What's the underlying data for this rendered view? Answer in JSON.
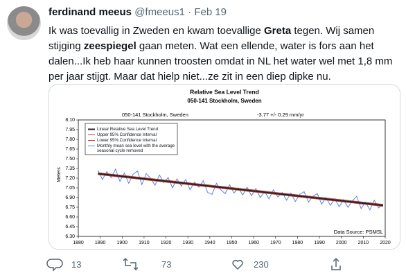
{
  "tweet": {
    "author_name": "ferdinand meeus",
    "handle": "@fmeeus1",
    "separator": "·",
    "date": "Feb 19",
    "lines": [
      [
        {
          "text": "Ik was toevallig in Zweden en kwam toevallige ",
          "bold": false
        },
        {
          "text": "Greta",
          "bold": true
        },
        {
          "text": " tegen. Wij samen",
          "bold": false
        }
      ],
      [
        {
          "text": "stijging ",
          "bold": false
        },
        {
          "text": "zeespiegel",
          "bold": true
        },
        {
          "text": " gaan meten. Wat een ellende, water is fors aan het",
          "bold": false
        }
      ],
      [
        {
          "text": "dalen...Ik heb haar kunnen troosten omdat in NL het water wel met 1,8 mm",
          "bold": false
        }
      ],
      [
        {
          "text": "per jaar stijgt. Maar dat hielp niet...ze zit in een diep dipke nu.",
          "bold": false
        }
      ]
    ],
    "replies": "13",
    "retweets": "73",
    "likes": "230"
  },
  "chart_data": {
    "type": "line",
    "title": "Relative Sea Level Trend",
    "subtitle": "050-141 Stockholm, Sweden",
    "station": "050-141 Stockholm, Sweden",
    "trend_text": "-3.77 +/-  0.29 mm/yr",
    "y_label": "Meters",
    "source": "Data Source: PSMSL",
    "xlim": [
      1880,
      2020
    ],
    "xticks": [
      1880,
      1890,
      1900,
      1910,
      1920,
      1930,
      1940,
      1950,
      1960,
      1970,
      1980,
      1990,
      2000,
      2010,
      2020
    ],
    "ylim": [
      6.3,
      8.1
    ],
    "yticks": [
      {
        "value": 6.3,
        "label": "6.30"
      },
      {
        "value": 6.45,
        "label": "6.45"
      },
      {
        "value": 6.6,
        "label": "6.60"
      },
      {
        "value": 6.75,
        "label": "6.75"
      },
      {
        "value": 6.9,
        "label": "6.90"
      },
      {
        "value": 7.05,
        "label": "7.05"
      },
      {
        "value": 7.2,
        "label": "7.20"
      },
      {
        "value": 7.35,
        "label": "7.35"
      },
      {
        "value": 7.5,
        "label": "7.50"
      },
      {
        "value": 7.65,
        "label": "7.65"
      },
      {
        "value": 7.8,
        "label": "7.80"
      },
      {
        "value": 7.95,
        "label": "7.95"
      },
      {
        "value": 8.1,
        "label": "8.10"
      }
    ],
    "series": [
      {
        "name": "Monthly mean sea level with the average seasonal cycle removed",
        "color": "#5b7fe6",
        "width": 1,
        "x": [
          1889,
          1891,
          1893,
          1895,
          1897,
          1899,
          1901,
          1903,
          1905,
          1907,
          1909,
          1911,
          1913,
          1915,
          1917,
          1919,
          1921,
          1923,
          1925,
          1927,
          1929,
          1931,
          1933,
          1935,
          1937,
          1939,
          1941,
          1943,
          1945,
          1947,
          1949,
          1951,
          1953,
          1955,
          1957,
          1959,
          1961,
          1963,
          1965,
          1967,
          1969,
          1971,
          1973,
          1975,
          1977,
          1979,
          1981,
          1983,
          1985,
          1987,
          1989,
          1991,
          1993,
          1995,
          1997,
          1999,
          2001,
          2003,
          2005,
          2007,
          2009,
          2011,
          2013,
          2015,
          2017,
          2019
        ],
        "values": [
          7.32,
          7.18,
          7.3,
          7.21,
          7.34,
          7.15,
          7.28,
          7.12,
          7.26,
          7.31,
          7.1,
          7.27,
          7.2,
          7.09,
          7.25,
          7.13,
          7.21,
          7.05,
          7.19,
          7.08,
          7.18,
          7.02,
          7.14,
          7.06,
          7.16,
          6.98,
          6.95,
          7.12,
          7.02,
          6.96,
          7.1,
          6.97,
          7.05,
          6.94,
          7.06,
          6.93,
          7.04,
          6.9,
          6.99,
          6.88,
          7.02,
          6.91,
          6.98,
          6.86,
          6.97,
          6.84,
          6.95,
          6.99,
          6.83,
          6.92,
          6.96,
          6.8,
          6.9,
          6.78,
          6.88,
          6.76,
          6.87,
          6.75,
          6.85,
          6.92,
          6.73,
          6.83,
          6.71,
          6.86,
          6.74,
          6.8
        ]
      },
      {
        "name": "Upper 95% Confidence Interval",
        "color": "#c0392b",
        "width": 1,
        "x": [
          1889,
          2019
        ],
        "values": [
          7.285,
          6.795
        ]
      },
      {
        "name": "Lower 95% Confidence Interval",
        "color": "#c0392b",
        "width": 1,
        "x": [
          1889,
          2019
        ],
        "values": [
          7.255,
          6.765
        ]
      },
      {
        "name": "Linear Relative Sea Level Trend",
        "color": "#222222",
        "width": 2,
        "x": [
          1889,
          2019
        ],
        "values": [
          7.27,
          6.78
        ]
      }
    ],
    "legend_order": [
      3,
      1,
      2,
      0
    ]
  }
}
